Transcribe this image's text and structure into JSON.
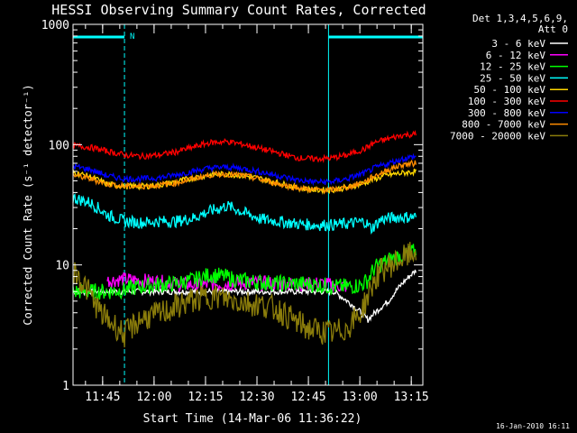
{
  "chart_data": {
    "type": "line",
    "title": "HESSI Observing Summary Count Rates, Corrected",
    "xlabel": "Start Time (14-Mar-06 11:36:22)",
    "ylabel": "Corrected Count Rate (s⁻¹ detector⁻¹)",
    "yscale": "log",
    "ylim": [
      1,
      1000
    ],
    "xlim_minutes": [
      0,
      102
    ],
    "x_unit": "minutes after 11:36:22",
    "x_ticks": [
      "11:45",
      "12:00",
      "12:15",
      "12:30",
      "12:45",
      "13:00",
      "13:15"
    ],
    "y_ticks": [
      "1",
      "10",
      "100",
      "1000"
    ],
    "legend_header": [
      "Det 1,3,4,5,6,9,",
      "Att 0"
    ],
    "legend_position": "right",
    "footer": "16-Jan-2010 16:11",
    "night_flag": "N",
    "night_intervals": [
      [
        0,
        15
      ],
      [
        74.5,
        102
      ]
    ],
    "series": [
      {
        "name": "3 - 6 keV",
        "color": "#ffffff",
        "x": [
          0,
          10,
          15,
          18,
          20,
          24,
          28,
          34,
          38,
          42,
          48,
          54,
          60,
          66,
          72,
          76,
          80,
          84,
          86,
          88,
          92,
          96,
          100
        ],
        "y": [
          6,
          6,
          6,
          6,
          6,
          6,
          6,
          6,
          6,
          6,
          6,
          6,
          6,
          6,
          6,
          6,
          5,
          4,
          3.5,
          4,
          5,
          7,
          9
        ]
      },
      {
        "name": "6 - 12 keV",
        "color": "#ff00ff",
        "x": [
          10,
          15,
          18,
          24,
          30,
          36,
          42,
          48,
          54,
          60,
          66,
          72,
          76,
          80
        ],
        "y": [
          7.4,
          7.6,
          7.5,
          7.3,
          7.0,
          6.8,
          6.9,
          7.0,
          7.1,
          7.0,
          6.9,
          7.0,
          6.8,
          6.6
        ]
      },
      {
        "name": "12 - 25 keV",
        "color": "#00ff00",
        "x": [
          0,
          10,
          15,
          18,
          24,
          30,
          36,
          40,
          44,
          48,
          54,
          60,
          66,
          72,
          76,
          80,
          84,
          86,
          88,
          92,
          96,
          100
        ],
        "y": [
          6,
          6,
          6.2,
          6.5,
          6.8,
          7.0,
          7.6,
          8.3,
          8.0,
          7.5,
          7.2,
          7.0,
          7.0,
          6.8,
          6.6,
          6.6,
          6.8,
          7.5,
          9.5,
          11,
          12,
          13
        ]
      },
      {
        "name": "25 - 50 keV",
        "color": "#00ffff",
        "x": [
          0,
          5,
          10,
          15,
          20,
          25,
          30,
          35,
          40,
          45,
          50,
          55,
          60,
          65,
          70,
          75,
          80,
          85,
          87,
          90,
          95,
          100
        ],
        "y": [
          36,
          33,
          26,
          23,
          22.5,
          23,
          23,
          24.5,
          28,
          31,
          27,
          24,
          23,
          22,
          21.5,
          21.5,
          22,
          23,
          20,
          24,
          25,
          25
        ]
      },
      {
        "name": "50 - 100 keV",
        "color": "#ffd700",
        "x": [
          0,
          5,
          10,
          15,
          20,
          25,
          30,
          35,
          40,
          45,
          50,
          55,
          60,
          65,
          70,
          75,
          80,
          85,
          88,
          92,
          96,
          100
        ],
        "y": [
          59,
          54,
          47,
          45,
          45,
          46,
          49,
          53,
          56,
          57,
          55,
          52,
          48,
          44,
          42,
          42,
          44,
          48,
          52,
          56,
          58,
          60
        ]
      },
      {
        "name": "100 - 300 keV",
        "color": "#ff0000",
        "x": [
          0,
          5,
          10,
          15,
          20,
          25,
          30,
          35,
          40,
          45,
          50,
          55,
          60,
          65,
          70,
          75,
          80,
          85,
          88,
          92,
          96,
          100
        ],
        "y": [
          98,
          95,
          88,
          82,
          80,
          82,
          87,
          95,
          104,
          106,
          100,
          92,
          85,
          78,
          76,
          77,
          82,
          92,
          104,
          112,
          120,
          122
        ]
      },
      {
        "name": "300 - 800 keV",
        "color": "#0000ff",
        "x": [
          0,
          5,
          10,
          15,
          20,
          25,
          30,
          35,
          40,
          45,
          50,
          55,
          60,
          65,
          70,
          75,
          80,
          85,
          88,
          92,
          96,
          100
        ],
        "y": [
          66,
          62,
          55,
          52,
          52,
          53,
          56,
          60,
          64,
          65,
          63,
          59,
          55,
          51,
          49,
          49,
          52,
          58,
          64,
          70,
          76,
          80
        ]
      },
      {
        "name": "800 - 7000 keV",
        "color": "#ff8c00",
        "x": [
          0,
          5,
          10,
          15,
          20,
          25,
          30,
          35,
          40,
          45,
          50,
          55,
          60,
          65,
          70,
          75,
          80,
          85,
          88,
          92,
          96,
          100
        ],
        "y": [
          56,
          52,
          47,
          45,
          45,
          46,
          48,
          52,
          56,
          57,
          55,
          51,
          47,
          44,
          42,
          42,
          44,
          49,
          55,
          62,
          68,
          70
        ]
      },
      {
        "name": "7000 - 20000 keV",
        "color": "#8b7d0b",
        "x": [
          0,
          3,
          6,
          8,
          10,
          13,
          15,
          18,
          20,
          24,
          28,
          30,
          34,
          38,
          40,
          44,
          48,
          52,
          56,
          60,
          64,
          68,
          72,
          76,
          80,
          84,
          86,
          88,
          90,
          94,
          98,
          100
        ],
        "y": [
          9,
          7,
          5,
          4,
          3.5,
          3,
          2.6,
          3.2,
          3.6,
          3.8,
          4.2,
          4.5,
          5.0,
          5.3,
          5.5,
          5.3,
          5.0,
          4.8,
          4.6,
          4.2,
          3.5,
          3.0,
          2.8,
          2.7,
          3.0,
          4.0,
          5.5,
          7.5,
          9,
          10.5,
          12,
          13
        ]
      }
    ]
  }
}
